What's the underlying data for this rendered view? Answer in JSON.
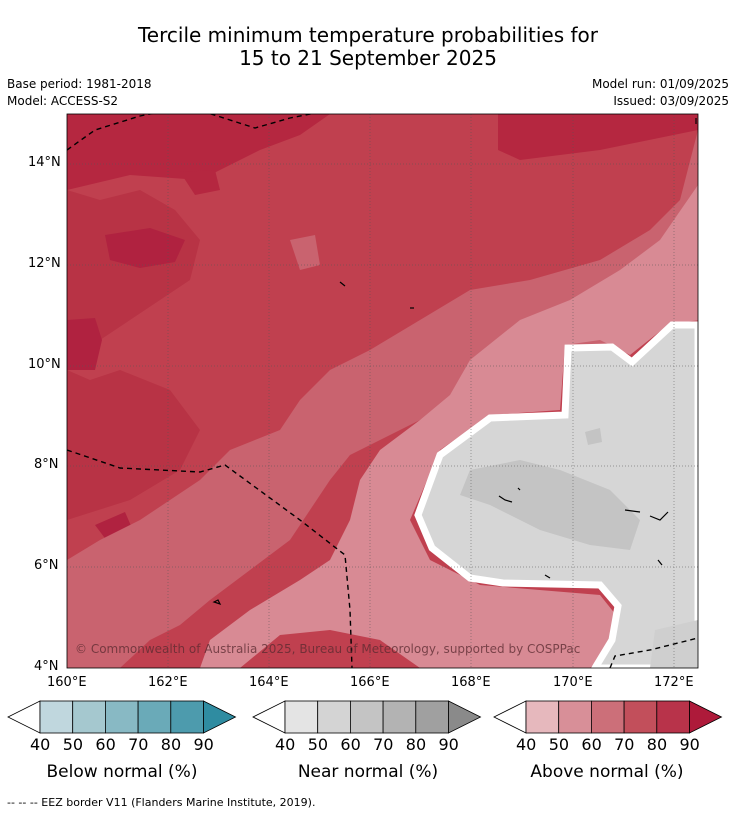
{
  "header": {
    "title_line1": "Tercile minimum temperature probabilities for",
    "title_line2": "15 to 21 September 2025",
    "base_period": "Base period: 1981-2018",
    "model": "Model: ACCESS-S2",
    "model_run": "Model run: 01/09/2025",
    "issued": "Issued: 03/09/2025"
  },
  "map": {
    "lat_ticks": [
      "14°N",
      "12°N",
      "10°N",
      "8°N",
      "6°N",
      "4°N"
    ],
    "lon_ticks": [
      "160°E",
      "162°E",
      "164°E",
      "166°E",
      "168°E",
      "170°E",
      "172°E"
    ],
    "copyright": "© Commonwealth of Australia 2025, Bureau of Meteorology, supported by COSPPac"
  },
  "colorbars": [
    {
      "label": "Below normal (%)",
      "ticks": [
        "40",
        "50",
        "60",
        "70",
        "80",
        "90"
      ],
      "colors": [
        "#c0d7de",
        "#a5c8cf",
        "#88b9c4",
        "#6aaab8",
        "#4d9bad",
        "#2f8ca1"
      ]
    },
    {
      "label": "Near normal (%)",
      "ticks": [
        "40",
        "50",
        "60",
        "70",
        "80",
        "90"
      ],
      "colors": [
        "#e4e4e4",
        "#d4d4d4",
        "#c4c4c4",
        "#b3b3b3",
        "#a0a0a0",
        "#8a8a8a"
      ]
    },
    {
      "label": "Above normal (%)",
      "ticks": [
        "40",
        "50",
        "60",
        "70",
        "80",
        "90"
      ],
      "colors": [
        "#e6b8bd",
        "#d88f98",
        "#cc6f79",
        "#c24f5b",
        "#b8334a",
        "#ae1a3a"
      ]
    }
  ],
  "footer": "--  --  -- EEZ border V11 (Flanders Marine Institute, 2019)."
}
